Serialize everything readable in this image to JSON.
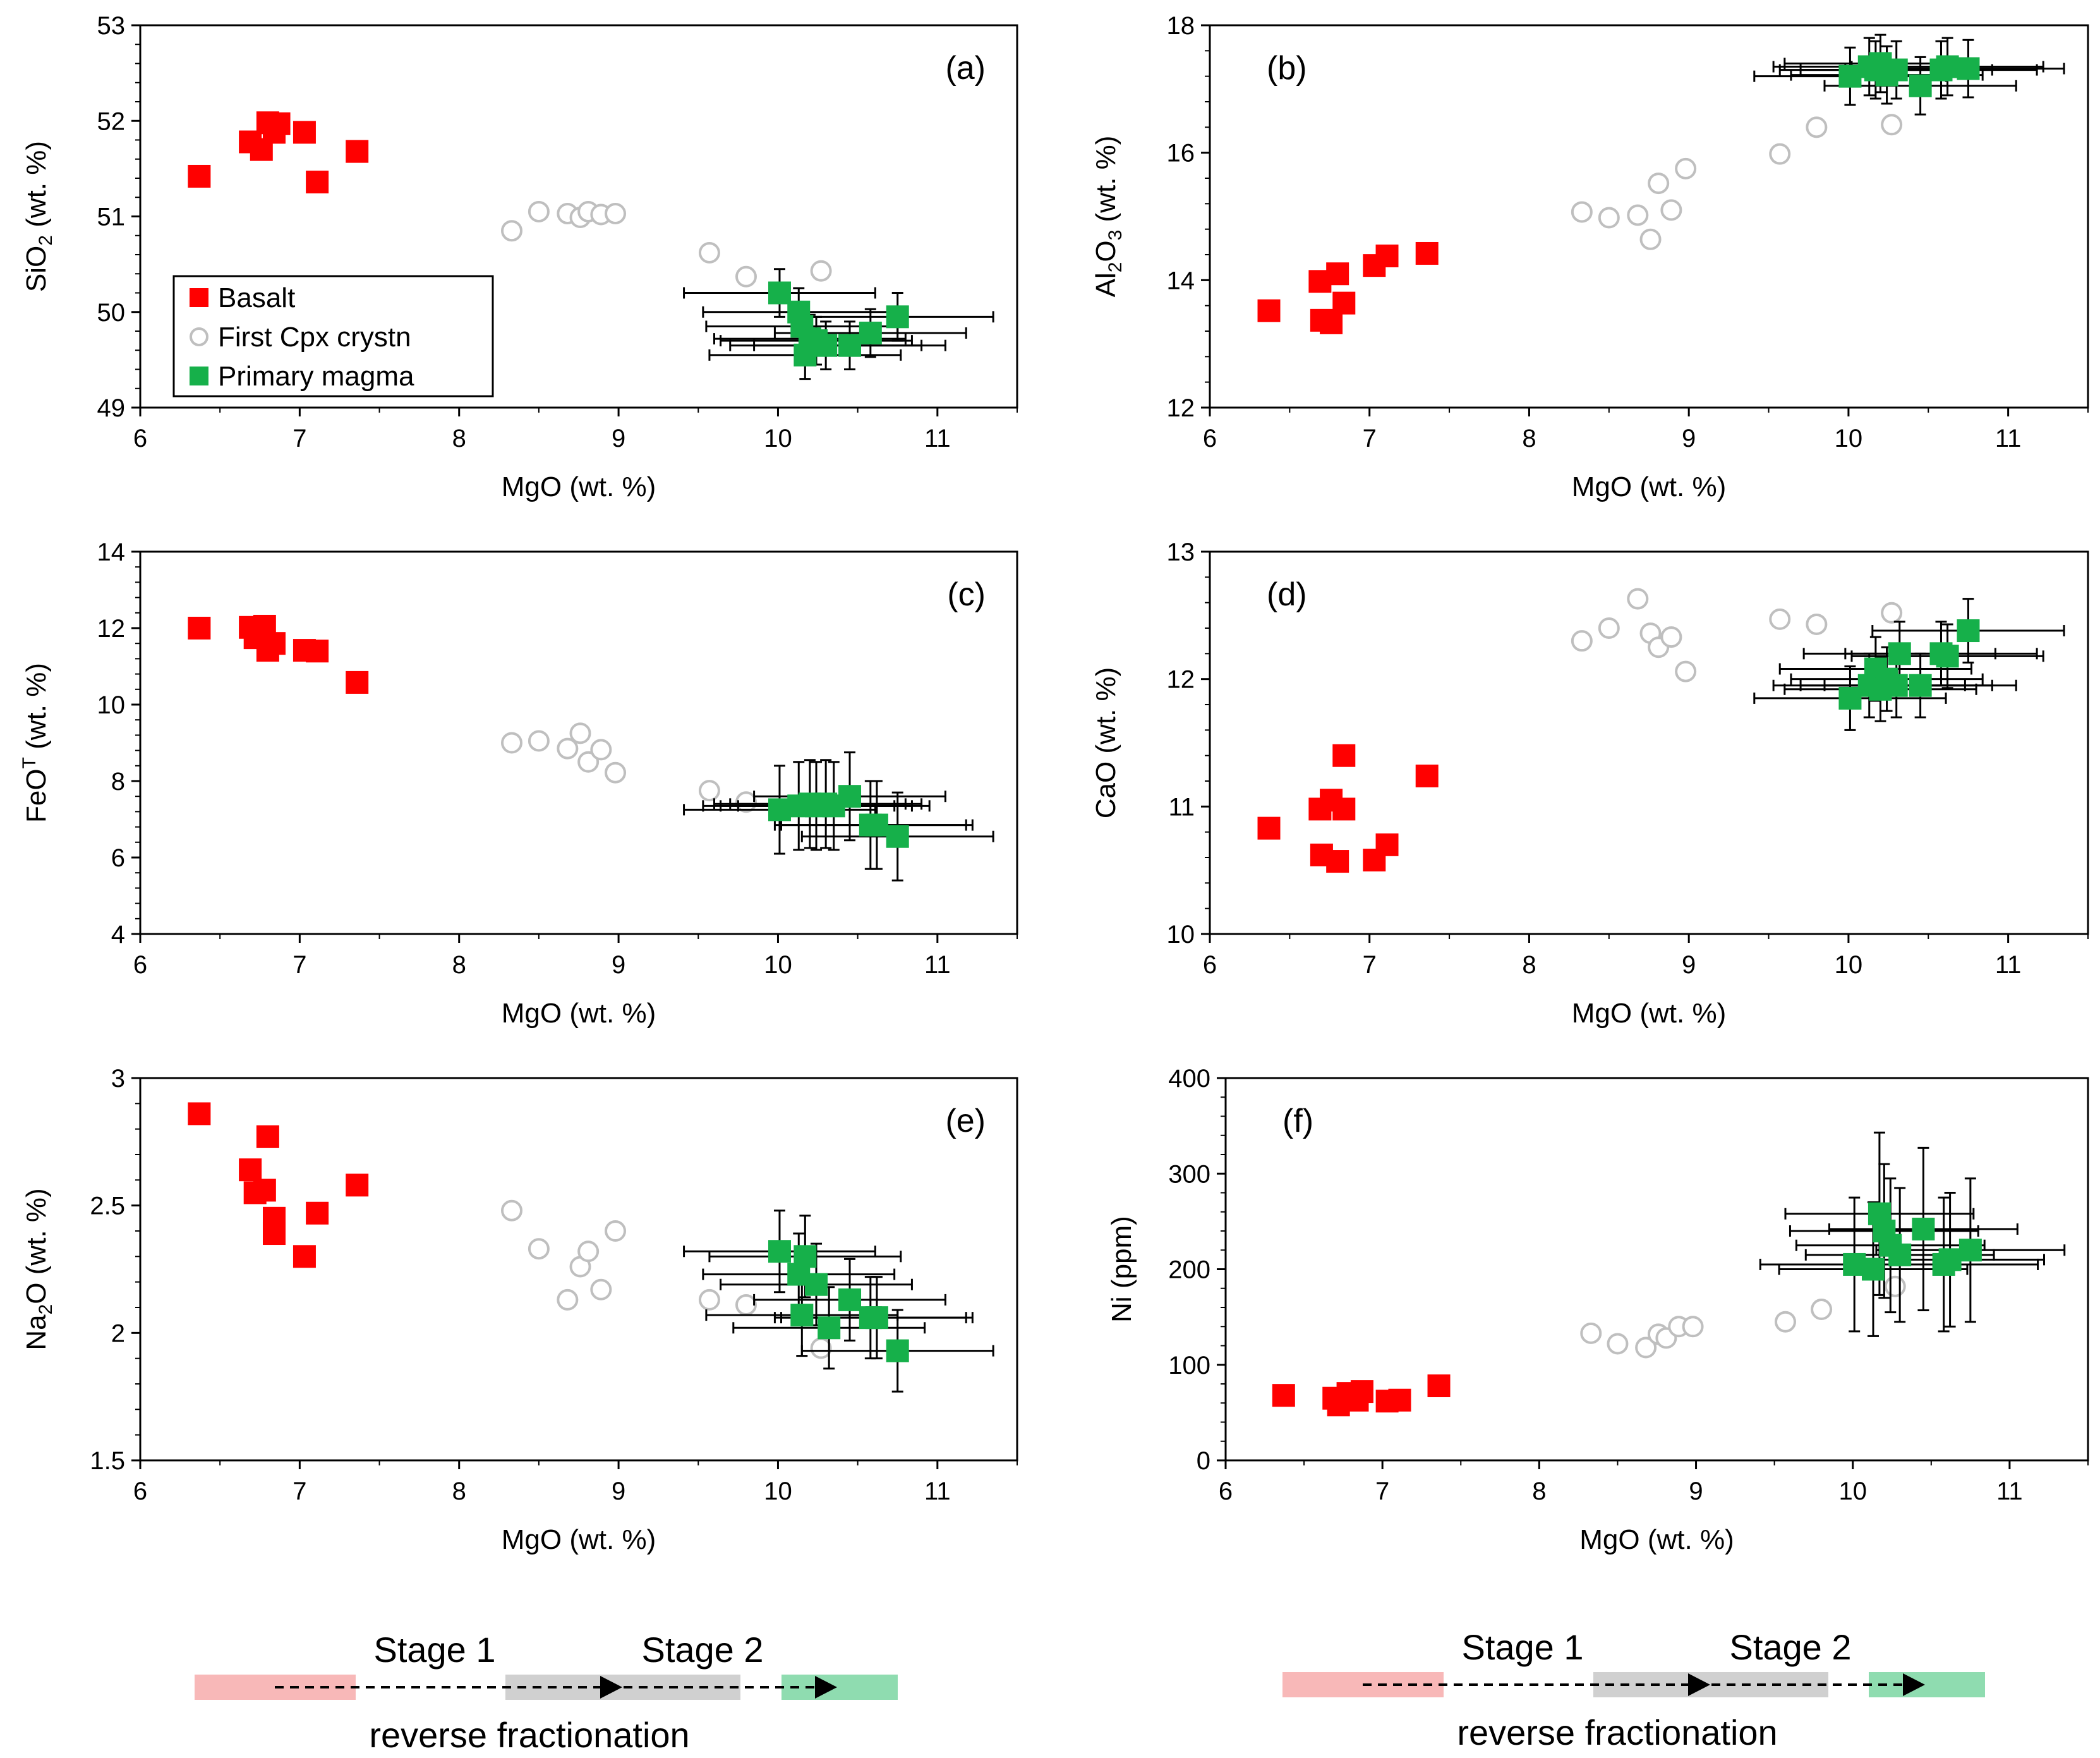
{
  "chart_data": [
    {
      "type": "scatter",
      "panel_label": "(a)",
      "xlabel": "MgO (wt. %)",
      "ylabel_parts": [
        "SiO",
        "2",
        " (wt. %)"
      ],
      "ylabel_style": "sub",
      "xlim": [
        6,
        11.5
      ],
      "ylim": [
        49,
        53
      ],
      "xticks": [
        6,
        7,
        8,
        9,
        10,
        11
      ],
      "yticks": [
        49,
        50,
        51,
        52,
        53
      ],
      "ytick_labels": [
        "49",
        "50",
        "51",
        "52",
        "53"
      ],
      "legend": [
        "Basalt",
        "First Cpx crystn",
        "Primary magma"
      ],
      "series": {
        "basalt": [
          [
            6.37,
            51.42
          ],
          [
            6.69,
            51.78
          ],
          [
            6.76,
            51.7
          ],
          [
            6.8,
            51.98
          ],
          [
            6.84,
            51.88
          ],
          [
            6.87,
            51.97
          ],
          [
            7.03,
            51.88
          ],
          [
            7.11,
            51.36
          ],
          [
            7.36,
            51.68
          ]
        ],
        "cpx": [
          [
            8.33,
            50.85
          ],
          [
            8.5,
            51.05
          ],
          [
            8.68,
            51.03
          ],
          [
            8.76,
            50.99
          ],
          [
            8.81,
            51.05
          ],
          [
            8.89,
            51.02
          ],
          [
            8.98,
            51.03
          ],
          [
            9.57,
            50.62
          ],
          [
            9.8,
            50.37
          ],
          [
            10.27,
            50.43
          ]
        ],
        "primary": [
          [
            10.01,
            50.2,
            0.6,
            0.25
          ],
          [
            10.13,
            50.0,
            0.6,
            0.25
          ],
          [
            10.15,
            49.85,
            0.6,
            0.25
          ],
          [
            10.2,
            49.72,
            0.6,
            0.25
          ],
          [
            10.17,
            49.55,
            0.6,
            0.25
          ],
          [
            10.24,
            49.7,
            0.6,
            0.25
          ],
          [
            10.3,
            49.65,
            0.6,
            0.25
          ],
          [
            10.45,
            49.65,
            0.6,
            0.25
          ],
          [
            10.58,
            49.78,
            0.6,
            0.25
          ],
          [
            10.75,
            49.95,
            0.6,
            0.25
          ]
        ]
      }
    },
    {
      "type": "scatter",
      "panel_label": "(b)",
      "xlabel": "MgO (wt. %)",
      "ylabel_parts": [
        "Al",
        "2",
        "O",
        "3",
        " (wt. %)"
      ],
      "ylabel_style": "al2o3",
      "xlim": [
        6,
        11.5
      ],
      "ylim": [
        12,
        18
      ],
      "xticks": [
        6,
        7,
        8,
        9,
        10,
        11
      ],
      "yticks": [
        12,
        14,
        16,
        18
      ],
      "ytick_labels": [
        "12",
        "14",
        "16",
        "18"
      ],
      "series": {
        "basalt": [
          [
            6.37,
            13.52
          ],
          [
            6.69,
            13.98
          ],
          [
            6.7,
            13.37
          ],
          [
            6.76,
            13.33
          ],
          [
            6.8,
            14.1
          ],
          [
            6.84,
            13.64
          ],
          [
            7.03,
            14.23
          ],
          [
            7.11,
            14.38
          ],
          [
            7.36,
            14.42
          ]
        ],
        "cpx": [
          [
            8.33,
            15.07
          ],
          [
            8.5,
            14.98
          ],
          [
            8.68,
            15.02
          ],
          [
            8.76,
            14.64
          ],
          [
            8.81,
            15.52
          ],
          [
            8.89,
            15.1
          ],
          [
            8.98,
            15.75
          ],
          [
            9.57,
            15.98
          ],
          [
            9.8,
            16.4
          ],
          [
            10.27,
            16.44
          ]
        ],
        "primary": [
          [
            10.01,
            17.2,
            0.6,
            0.45
          ],
          [
            10.13,
            17.35,
            0.6,
            0.45
          ],
          [
            10.17,
            17.3,
            0.6,
            0.45
          ],
          [
            10.2,
            17.4,
            0.6,
            0.45
          ],
          [
            10.24,
            17.22,
            0.6,
            0.45
          ],
          [
            10.3,
            17.3,
            0.6,
            0.45
          ],
          [
            10.45,
            17.05,
            0.6,
            0.45
          ],
          [
            10.58,
            17.3,
            0.6,
            0.45
          ],
          [
            10.62,
            17.35,
            0.6,
            0.45
          ],
          [
            10.75,
            17.32,
            0.6,
            0.45
          ]
        ]
      }
    },
    {
      "type": "scatter",
      "panel_label": "(c)",
      "xlabel": "MgO (wt. %)",
      "ylabel_parts": [
        "FeO",
        "T",
        " (wt. %)"
      ],
      "ylabel_style": "sup",
      "xlim": [
        6,
        11.5
      ],
      "ylim": [
        4,
        14
      ],
      "xticks": [
        6,
        7,
        8,
        9,
        10,
        11
      ],
      "yticks": [
        4,
        6,
        8,
        10,
        12,
        14
      ],
      "ytick_labels": [
        "4",
        "6",
        "8",
        "10",
        "12",
        "14"
      ],
      "series": {
        "basalt": [
          [
            6.37,
            12.0
          ],
          [
            6.69,
            12.02
          ],
          [
            6.72,
            11.75
          ],
          [
            6.78,
            12.05
          ],
          [
            6.8,
            11.42
          ],
          [
            6.84,
            11.6
          ],
          [
            7.03,
            11.42
          ],
          [
            7.11,
            11.4
          ],
          [
            7.36,
            10.58
          ]
        ],
        "cpx": [
          [
            8.33,
            9.0
          ],
          [
            8.5,
            9.05
          ],
          [
            8.68,
            8.85
          ],
          [
            8.76,
            9.25
          ],
          [
            8.81,
            8.5
          ],
          [
            8.89,
            8.82
          ],
          [
            8.98,
            8.22
          ],
          [
            9.57,
            7.75
          ],
          [
            9.8,
            7.45
          ]
        ],
        "primary": [
          [
            10.01,
            7.25,
            0.6,
            1.15
          ],
          [
            10.13,
            7.35,
            0.6,
            1.15
          ],
          [
            10.2,
            7.4,
            0.6,
            1.15
          ],
          [
            10.24,
            7.35,
            0.6,
            1.15
          ],
          [
            10.3,
            7.4,
            0.6,
            1.15
          ],
          [
            10.35,
            7.35,
            0.6,
            1.15
          ],
          [
            10.45,
            7.6,
            0.6,
            1.15
          ],
          [
            10.58,
            6.85,
            0.6,
            1.15
          ],
          [
            10.62,
            6.85,
            0.6,
            1.15
          ],
          [
            10.75,
            6.55,
            0.6,
            1.15
          ]
        ]
      }
    },
    {
      "type": "scatter",
      "panel_label": "(d)",
      "xlabel": "MgO (wt. %)",
      "ylabel_parts": [
        "CaO (wt. %)"
      ],
      "ylabel_style": "plain",
      "xlim": [
        6,
        11.5
      ],
      "ylim": [
        10,
        13
      ],
      "xticks": [
        6,
        7,
        8,
        9,
        10,
        11
      ],
      "yticks": [
        10,
        11,
        12,
        13
      ],
      "ytick_labels": [
        "10",
        "11",
        "12",
        "13"
      ],
      "series": {
        "basalt": [
          [
            6.37,
            10.83
          ],
          [
            6.69,
            10.98
          ],
          [
            6.7,
            10.62
          ],
          [
            6.76,
            11.05
          ],
          [
            6.8,
            10.57
          ],
          [
            6.84,
            10.98
          ],
          [
            6.84,
            11.4
          ],
          [
            7.03,
            10.58
          ],
          [
            7.11,
            10.7
          ],
          [
            7.36,
            11.24
          ]
        ],
        "cpx": [
          [
            8.33,
            12.3
          ],
          [
            8.5,
            12.4
          ],
          [
            8.68,
            12.63
          ],
          [
            8.76,
            12.36
          ],
          [
            8.81,
            12.25
          ],
          [
            8.89,
            12.33
          ],
          [
            8.98,
            12.06
          ],
          [
            9.57,
            12.47
          ],
          [
            9.8,
            12.43
          ],
          [
            10.27,
            12.52
          ]
        ],
        "primary": [
          [
            10.01,
            11.85,
            0.6,
            0.25
          ],
          [
            10.13,
            11.95,
            0.6,
            0.25
          ],
          [
            10.17,
            12.08,
            0.6,
            0.25
          ],
          [
            10.2,
            11.92,
            0.6,
            0.25
          ],
          [
            10.24,
            12.0,
            0.6,
            0.25
          ],
          [
            10.3,
            11.95,
            0.6,
            0.25
          ],
          [
            10.32,
            12.2,
            0.6,
            0.25
          ],
          [
            10.45,
            11.95,
            0.6,
            0.25
          ],
          [
            10.58,
            12.2,
            0.6,
            0.25
          ],
          [
            10.62,
            12.18,
            0.6,
            0.25
          ],
          [
            10.75,
            12.38,
            0.6,
            0.25
          ]
        ]
      }
    },
    {
      "type": "scatter",
      "panel_label": "(e)",
      "xlabel": "MgO (wt. %)",
      "ylabel_parts": [
        "Na",
        "2",
        "O (wt. %)"
      ],
      "ylabel_style": "sub",
      "xlim": [
        6,
        11.5
      ],
      "ylim": [
        1.5,
        3
      ],
      "xticks": [
        6,
        7,
        8,
        9,
        10,
        11
      ],
      "yticks": [
        1.5,
        2,
        2.5,
        3
      ],
      "ytick_labels": [
        "1.5",
        "2",
        "2.5",
        "3"
      ],
      "series": {
        "basalt": [
          [
            6.37,
            2.86
          ],
          [
            6.69,
            2.64
          ],
          [
            6.72,
            2.55
          ],
          [
            6.78,
            2.56
          ],
          [
            6.8,
            2.77
          ],
          [
            6.84,
            2.45
          ],
          [
            6.84,
            2.39
          ],
          [
            7.03,
            2.3
          ],
          [
            7.11,
            2.47
          ],
          [
            7.36,
            2.58
          ]
        ],
        "cpx": [
          [
            8.33,
            2.48
          ],
          [
            8.5,
            2.33
          ],
          [
            8.68,
            2.13
          ],
          [
            8.76,
            2.26
          ],
          [
            8.81,
            2.32
          ],
          [
            8.89,
            2.17
          ],
          [
            8.98,
            2.4
          ],
          [
            9.57,
            2.13
          ],
          [
            9.8,
            2.11
          ],
          [
            10.27,
            1.94
          ]
        ],
        "primary": [
          [
            10.01,
            2.32,
            0.6,
            0.16
          ],
          [
            10.13,
            2.23,
            0.6,
            0.16
          ],
          [
            10.17,
            2.3,
            0.6,
            0.16
          ],
          [
            10.15,
            2.07,
            0.6,
            0.16
          ],
          [
            10.24,
            2.19,
            0.6,
            0.16
          ],
          [
            10.32,
            2.02,
            0.6,
            0.16
          ],
          [
            10.45,
            2.13,
            0.6,
            0.16
          ],
          [
            10.58,
            2.06,
            0.6,
            0.16
          ],
          [
            10.62,
            2.06,
            0.6,
            0.16
          ],
          [
            10.75,
            1.93,
            0.6,
            0.16
          ]
        ]
      }
    },
    {
      "type": "scatter",
      "panel_label": "(f)",
      "xlabel": "MgO (wt. %)",
      "ylabel_parts": [
        "Ni (ppm)"
      ],
      "ylabel_style": "plain",
      "xlim": [
        6,
        11.5
      ],
      "ylim": [
        0,
        400
      ],
      "xticks": [
        6,
        7,
        8,
        9,
        10,
        11
      ],
      "yticks": [
        0,
        100,
        200,
        300,
        400
      ],
      "ytick_labels": [
        "0",
        "100",
        "200",
        "300",
        "400"
      ],
      "series": {
        "basalt": [
          [
            6.37,
            68
          ],
          [
            6.69,
            65
          ],
          [
            6.72,
            58
          ],
          [
            6.78,
            70
          ],
          [
            6.84,
            63
          ],
          [
            6.87,
            72
          ],
          [
            7.03,
            62
          ],
          [
            7.11,
            63
          ],
          [
            7.36,
            78
          ]
        ],
        "cpx": [
          [
            8.33,
            133
          ],
          [
            8.5,
            122
          ],
          [
            8.68,
            118
          ],
          [
            8.76,
            132
          ],
          [
            8.81,
            128
          ],
          [
            8.89,
            140
          ],
          [
            8.98,
            140
          ],
          [
            9.57,
            145
          ],
          [
            9.8,
            158
          ],
          [
            10.27,
            182
          ]
        ],
        "primary": [
          [
            10.01,
            205,
            0.6,
            70
          ],
          [
            10.13,
            200,
            0.6,
            70
          ],
          [
            10.17,
            258,
            0.6,
            85
          ],
          [
            10.2,
            240,
            0.6,
            70
          ],
          [
            10.24,
            225,
            0.6,
            70
          ],
          [
            10.3,
            215,
            0.6,
            70
          ],
          [
            10.45,
            242,
            0.6,
            85
          ],
          [
            10.58,
            205,
            0.6,
            70
          ],
          [
            10.62,
            210,
            0.6,
            70
          ],
          [
            10.75,
            220,
            0.6,
            75
          ]
        ]
      }
    }
  ],
  "legend_labels": {
    "basalt": "Basalt",
    "cpx": "First Cpx crystn",
    "primary": "Primary magma"
  },
  "bottom": {
    "stage1": "Stage 1",
    "stage2": "Stage 2",
    "caption": "reverse fractionation"
  },
  "colors": {
    "basalt": "#ff0000",
    "cpx": "#bfbfbf",
    "primary": "#16b04a",
    "errorbar": "#000000",
    "stage_red": "#f5a0a0",
    "stage_grey": "#d0d0d0",
    "stage_green": "#8fdcb0"
  }
}
